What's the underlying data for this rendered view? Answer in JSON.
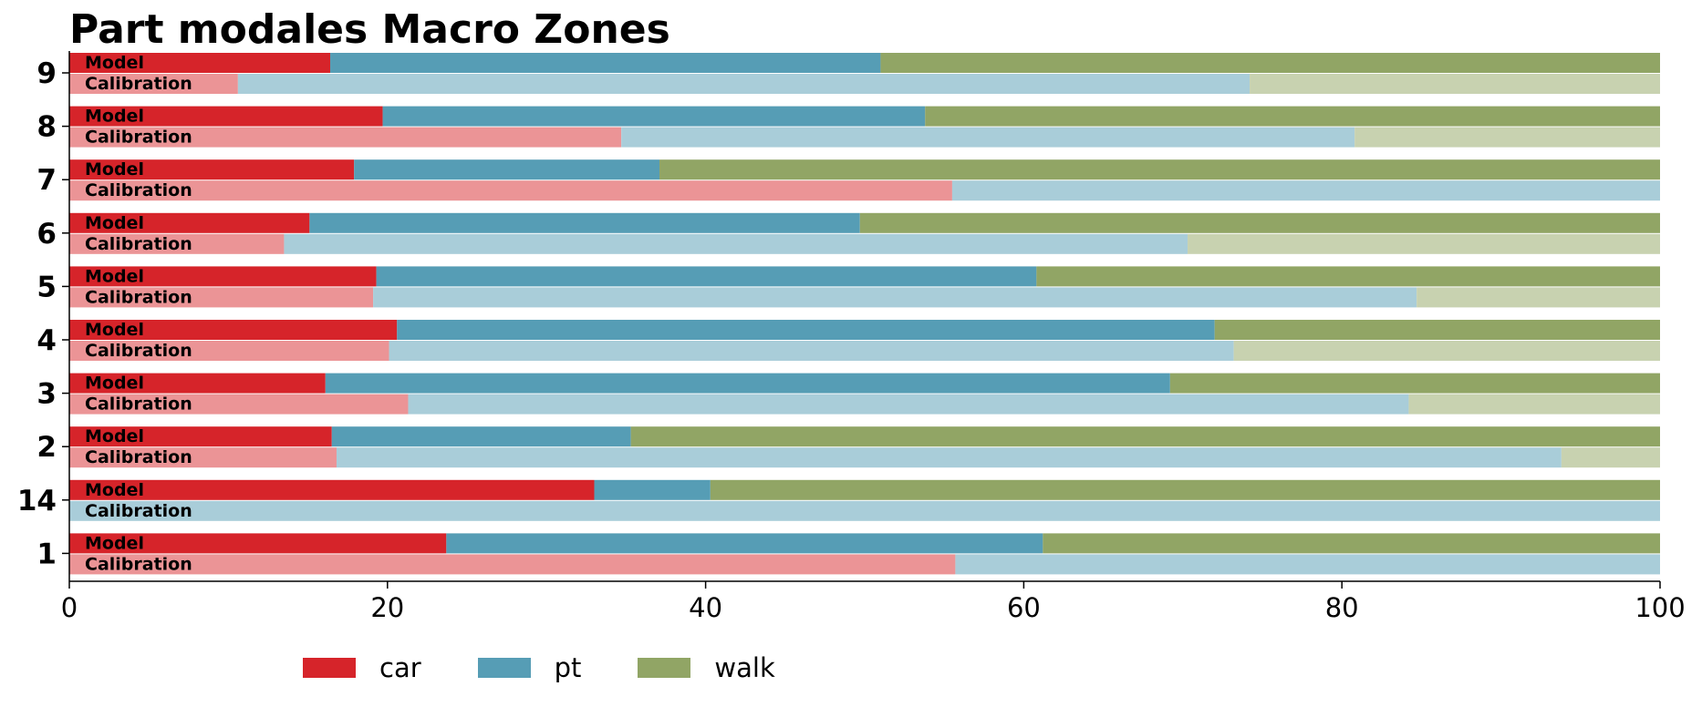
{
  "chart_data": {
    "type": "bar",
    "orientation": "horizontal",
    "stacked": true,
    "title": "Part modales Macro Zones",
    "categories": [
      "9",
      "8",
      "7",
      "6",
      "5",
      "4",
      "3",
      "2",
      "14",
      "1"
    ],
    "bar_labels": [
      "Model",
      "Calibration"
    ],
    "series": [
      {
        "name": "car",
        "color": "#d6242a",
        "calibration_color": "#eb9496"
      },
      {
        "name": "pt",
        "color": "#569db5",
        "calibration_color": "#a9cdd9"
      },
      {
        "name": "walk",
        "color": "#91a565",
        "calibration_color": "#c8d2b0"
      }
    ],
    "model": {
      "9": [
        16.4,
        34.6,
        49.0
      ],
      "8": [
        19.7,
        34.1,
        46.2
      ],
      "7": [
        17.9,
        19.2,
        62.9
      ],
      "6": [
        15.1,
        34.6,
        50.3
      ],
      "5": [
        19.3,
        41.5,
        39.2
      ],
      "4": [
        20.6,
        51.4,
        28.0
      ],
      "3": [
        16.1,
        53.1,
        30.8
      ],
      "2": [
        16.5,
        18.8,
        64.7
      ],
      "14": [
        33.0,
        7.3,
        59.7
      ],
      "1": [
        23.7,
        37.5,
        38.8
      ]
    },
    "calibration": {
      "9": [
        10.6,
        63.6,
        25.8
      ],
      "8": [
        34.7,
        46.1,
        19.2
      ],
      "7": [
        55.5,
        44.5,
        0.0
      ],
      "6": [
        13.5,
        56.8,
        29.7
      ],
      "5": [
        19.1,
        65.6,
        15.3
      ],
      "4": [
        20.1,
        53.1,
        26.8
      ],
      "3": [
        21.3,
        62.9,
        15.8
      ],
      "2": [
        16.8,
        77.0,
        6.2
      ],
      "14": [
        0.0,
        100.0,
        0.0
      ],
      "1": [
        55.7,
        44.3,
        0.0
      ]
    },
    "xlim": [
      0,
      100
    ],
    "xticks": [
      "0",
      "20",
      "40",
      "60",
      "80",
      "100"
    ],
    "xlabel": "",
    "ylabel": "",
    "legend_position": "bottom-left",
    "grid": false
  }
}
